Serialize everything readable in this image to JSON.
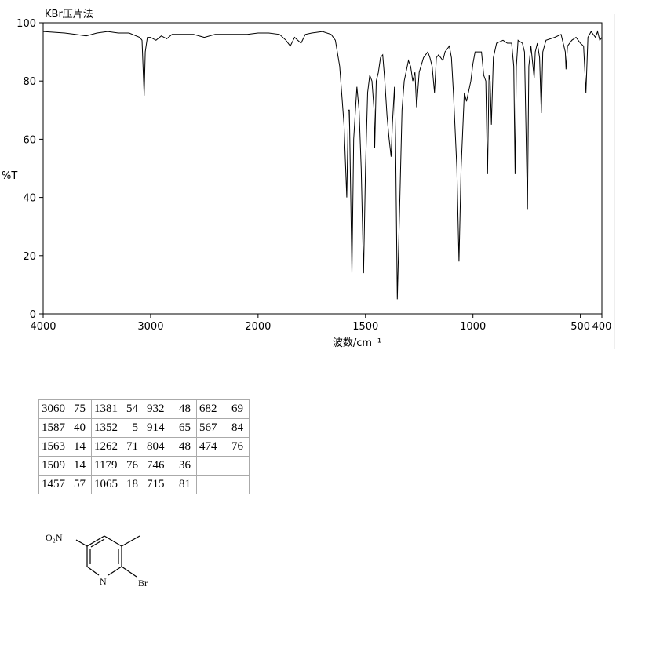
{
  "chart_data": {
    "type": "line",
    "title": "KBr压片法",
    "y_label": "%T",
    "x_label": "波数/cm⁻¹",
    "xlim": [
      4000,
      400
    ],
    "xscale": {
      "break": 2000,
      "ratio": 2
    },
    "xticks": [
      4000,
      3000,
      2000,
      1500,
      1000,
      500,
      400
    ],
    "ylim": [
      0,
      100
    ],
    "yticks": [
      0,
      20,
      40,
      60,
      80,
      100
    ],
    "grid": false,
    "series": [
      {
        "color": "#000000",
        "x": [
          4000,
          3800,
          3700,
          3600,
          3500,
          3400,
          3300,
          3200,
          3100,
          3080,
          3060,
          3050,
          3030,
          3000,
          2950,
          2900,
          2850,
          2800,
          2700,
          2600,
          2500,
          2400,
          2300,
          2200,
          2100,
          2000,
          1950,
          1900,
          1870,
          1850,
          1830,
          1800,
          1780,
          1750,
          1700,
          1660,
          1640,
          1620,
          1600,
          1587,
          1580,
          1575,
          1563,
          1555,
          1540,
          1530,
          1520,
          1509,
          1500,
          1490,
          1480,
          1470,
          1460,
          1457,
          1450,
          1440,
          1430,
          1420,
          1410,
          1400,
          1390,
          1381,
          1375,
          1365,
          1360,
          1352,
          1340,
          1330,
          1320,
          1300,
          1290,
          1280,
          1270,
          1262,
          1250,
          1230,
          1210,
          1200,
          1190,
          1179,
          1170,
          1160,
          1140,
          1130,
          1110,
          1100,
          1090,
          1075,
          1065,
          1055,
          1040,
          1030,
          1010,
          1000,
          990,
          960,
          950,
          940,
          932,
          925,
          920,
          914,
          905,
          890,
          860,
          840,
          820,
          810,
          804,
          798,
          790,
          770,
          760,
          746,
          740,
          730,
          715,
          710,
          700,
          690,
          682,
          675,
          660,
          620,
          590,
          570,
          567,
          560,
          540,
          520,
          500,
          485,
          474,
          465,
          450,
          430,
          420,
          410,
          400
        ],
        "values": [
          97,
          96.5,
          96,
          95.5,
          96.5,
          97,
          96.5,
          96.5,
          95,
          94,
          75,
          90,
          95,
          95,
          94,
          95.5,
          94.5,
          96,
          96,
          96,
          95,
          96,
          96,
          96,
          96,
          96.5,
          96.5,
          96,
          94,
          92,
          95,
          93,
          96,
          96.5,
          97,
          96,
          94,
          85,
          65,
          40,
          70,
          70,
          14,
          60,
          78,
          70,
          50,
          14,
          50,
          76,
          82,
          80,
          70,
          57,
          80,
          83,
          88,
          89,
          80,
          68,
          60,
          54,
          65,
          78,
          60,
          5,
          40,
          70,
          80,
          87,
          85,
          80,
          83,
          71,
          83,
          88,
          90,
          88,
          85,
          76,
          88,
          89,
          87,
          90,
          92,
          88,
          75,
          50,
          18,
          50,
          76,
          73,
          80,
          86,
          90,
          90,
          82,
          80,
          48,
          82,
          80,
          65,
          88,
          93,
          94,
          93,
          93,
          85,
          48,
          85,
          94,
          93,
          90,
          36,
          85,
          92,
          81,
          90,
          93,
          88,
          69,
          90,
          94,
          95,
          96,
          90,
          84,
          92,
          94,
          95,
          93,
          92,
          76,
          95,
          97,
          95,
          97,
          94,
          95
        ]
      }
    ]
  },
  "peak_table": {
    "columns": [
      [
        [
          3060,
          75
        ],
        [
          1587,
          40
        ],
        [
          1563,
          14
        ],
        [
          1509,
          14
        ],
        [
          1457,
          57
        ]
      ],
      [
        [
          1381,
          54
        ],
        [
          1352,
          5
        ],
        [
          1262,
          71
        ],
        [
          1179,
          76
        ],
        [
          1065,
          18
        ]
      ],
      [
        [
          932,
          48
        ],
        [
          914,
          65
        ],
        [
          804,
          48
        ],
        [
          746,
          36
        ],
        [
          715,
          81
        ]
      ],
      [
        [
          682,
          69
        ],
        [
          567,
          84
        ],
        [
          474,
          76
        ]
      ]
    ]
  },
  "structure": {
    "nitro": "O₂N",
    "ring_n": "N",
    "bromo": "Br"
  }
}
